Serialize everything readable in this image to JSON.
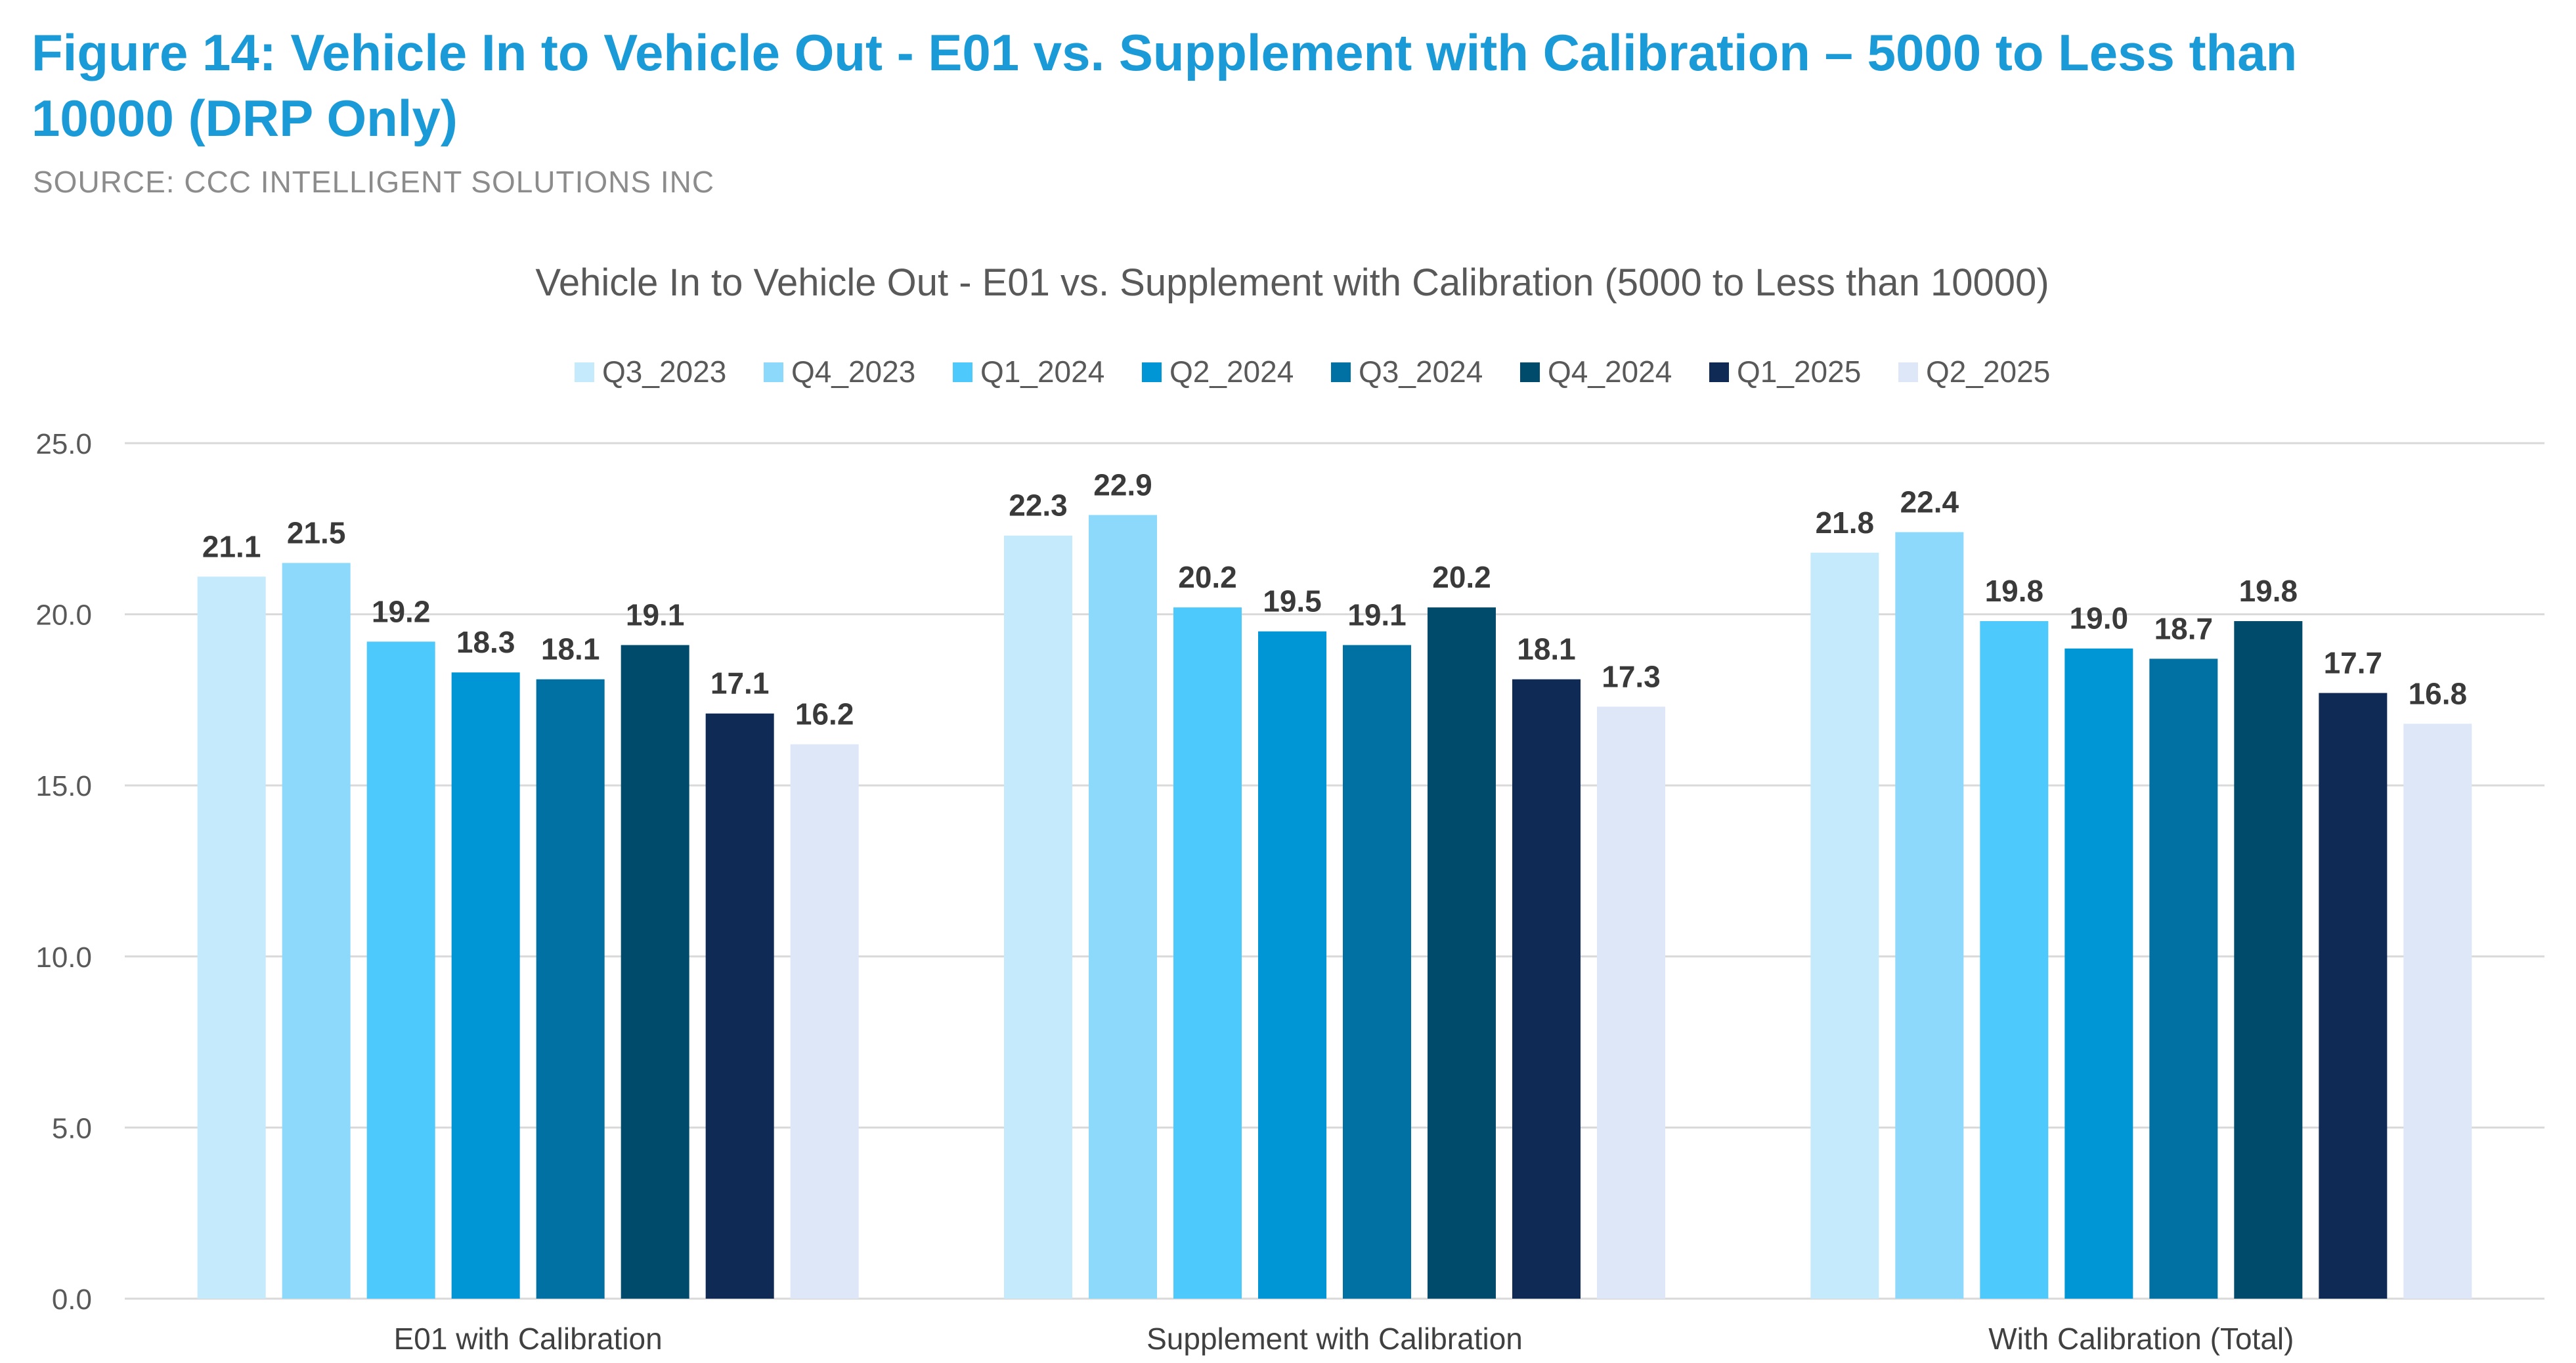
{
  "figure": {
    "title": "Figure 14: Vehicle In to Vehicle Out - E01 vs. Supplement with Calibration – 5000 to Less than 10000 (DRP Only)",
    "source": "SOURCE: CCC INTELLIGENT SOLUTIONS INC"
  },
  "chart_data": {
    "type": "bar",
    "title": "Vehicle In to Vehicle Out - E01 vs. Supplement with Calibration (5000 to Less than 10000)",
    "xlabel": "",
    "ylabel": "",
    "ylim": [
      0,
      25
    ],
    "yticks": [
      0,
      5,
      10,
      15,
      20,
      25
    ],
    "ytick_labels": [
      "0.0",
      "5.0",
      "10.0",
      "15.0",
      "20.0",
      "25.0"
    ],
    "grid": true,
    "legend_position": "top",
    "categories": [
      "E01 with Calibration",
      "Supplement with Calibration",
      "With Calibration (Total)"
    ],
    "series": [
      {
        "name": "Q3_2023",
        "color": "#c5eafb",
        "values": [
          21.1,
          22.3,
          21.8
        ]
      },
      {
        "name": "Q4_2023",
        "color": "#8dd9fb",
        "values": [
          21.5,
          22.9,
          22.4
        ]
      },
      {
        "name": "Q1_2024",
        "color": "#4ec9fb",
        "values": [
          19.2,
          20.2,
          19.8
        ]
      },
      {
        "name": "Q2_2024",
        "color": "#0096d6",
        "values": [
          18.3,
          19.5,
          19.0
        ]
      },
      {
        "name": "Q3_2024",
        "color": "#0171a3",
        "values": [
          18.1,
          19.1,
          18.7
        ]
      },
      {
        "name": "Q4_2024",
        "color": "#004a6b",
        "values": [
          19.1,
          20.2,
          19.8
        ]
      },
      {
        "name": "Q1_2025",
        "color": "#0f2a54",
        "values": [
          17.1,
          18.1,
          17.7
        ]
      },
      {
        "name": "Q2_2025",
        "color": "#dde7f7",
        "values": [
          16.2,
          17.3,
          16.8
        ]
      }
    ],
    "gridline_color": "#d9d9d9"
  }
}
